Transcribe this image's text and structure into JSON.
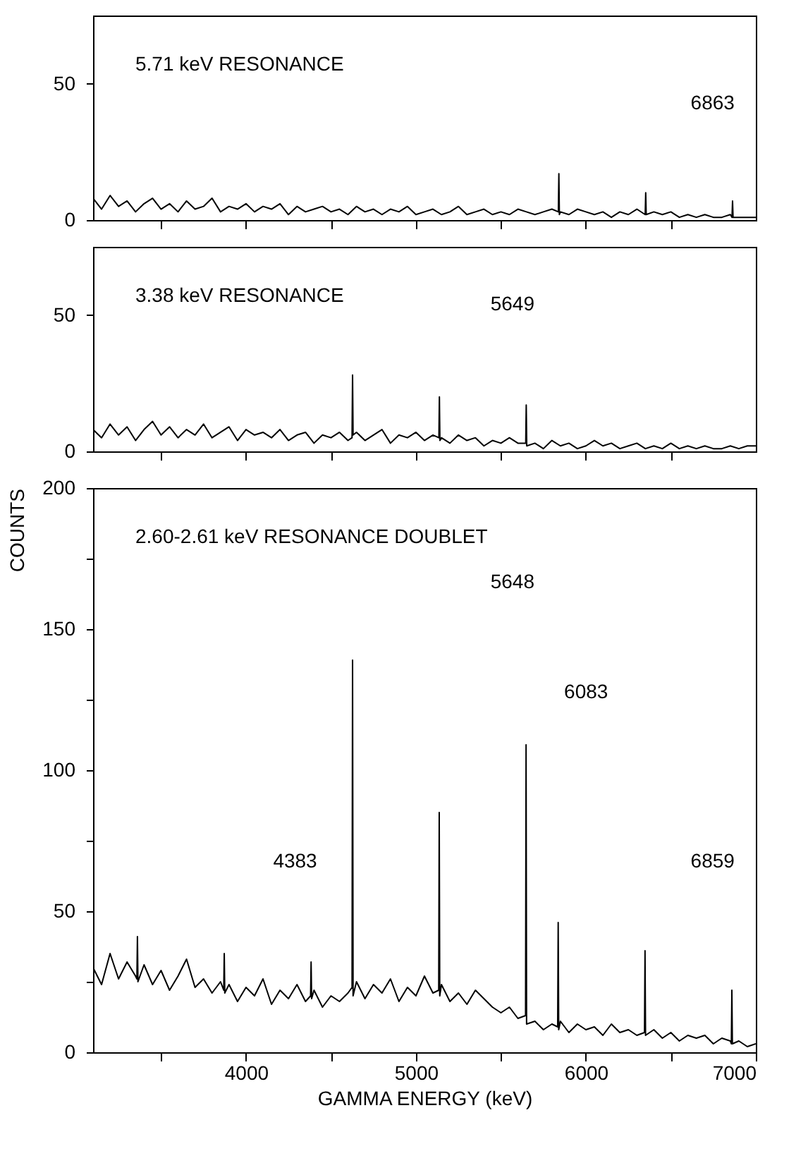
{
  "chart_data": [
    {
      "type": "line",
      "title": "5.71 keV RESONANCE",
      "xlim": [
        3100,
        7000
      ],
      "xticks": [
        {
          "value": 3500,
          "label": null
        },
        {
          "value": 4000,
          "label": null
        },
        {
          "value": 4500,
          "label": null
        },
        {
          "value": 5000,
          "label": null
        },
        {
          "value": 5500,
          "label": null
        },
        {
          "value": 6000,
          "label": null
        },
        {
          "value": 6500,
          "label": null
        }
      ],
      "ylim": [
        0,
        75
      ],
      "yticks": [
        0,
        50
      ],
      "tick_labels": "y",
      "grid": false,
      "annotations": [
        "6863"
      ],
      "series": [
        {
          "color": "#000000",
          "x": [
            3100,
            3150,
            3200,
            3250,
            3300,
            3350,
            3400,
            3450,
            3500,
            3550,
            3600,
            3650,
            3700,
            3750,
            3800,
            3850,
            3900,
            3950,
            4000,
            4050,
            4100,
            4150,
            4200,
            4250,
            4300,
            4350,
            4400,
            4450,
            4500,
            4550,
            4600,
            4650,
            4700,
            4750,
            4800,
            4850,
            4900,
            4950,
            5000,
            5050,
            5100,
            5150,
            5200,
            5250,
            5300,
            5350,
            5400,
            5450,
            5500,
            5550,
            5600,
            5650,
            5700,
            5750,
            5800,
            5838,
            5841,
            5844,
            5850,
            5900,
            5950,
            6000,
            6050,
            6100,
            6150,
            6200,
            6250,
            6300,
            6349,
            6352,
            6355,
            6400,
            6450,
            6500,
            6550,
            6600,
            6650,
            6700,
            6750,
            6800,
            6850,
            6860,
            6863,
            6866,
            6900,
            6950,
            7000
          ],
          "values": [
            8,
            4,
            9,
            5,
            7,
            3,
            6,
            8,
            4,
            6,
            3,
            7,
            4,
            5,
            8,
            3,
            5,
            4,
            6,
            3,
            5,
            4,
            6,
            2,
            5,
            3,
            4,
            5,
            3,
            4,
            2,
            5,
            3,
            4,
            2,
            4,
            3,
            5,
            2,
            3,
            4,
            2,
            3,
            5,
            2,
            3,
            4,
            2,
            3,
            2,
            4,
            3,
            2,
            3,
            4,
            3,
            17,
            2,
            3,
            2,
            4,
            3,
            2,
            3,
            1,
            3,
            2,
            4,
            2,
            10,
            2,
            3,
            2,
            3,
            1,
            2,
            1,
            2,
            1,
            1,
            2,
            1,
            7,
            1,
            1,
            1,
            1
          ]
        }
      ]
    },
    {
      "type": "line",
      "title": "3.38 keV RESONANCE",
      "xlim": [
        3100,
        7000
      ],
      "xticks": [
        {
          "value": 3500,
          "label": null
        },
        {
          "value": 4000,
          "label": null
        },
        {
          "value": 4500,
          "label": null
        },
        {
          "value": 5000,
          "label": null
        },
        {
          "value": 5500,
          "label": null
        },
        {
          "value": 6000,
          "label": null
        },
        {
          "value": 6500,
          "label": null
        }
      ],
      "ylim": [
        0,
        75
      ],
      "yticks": [
        0,
        50
      ],
      "tick_labels": "y",
      "grid": false,
      "annotations": [
        "5649"
      ],
      "series": [
        {
          "color": "#000000",
          "x": [
            3100,
            3150,
            3200,
            3250,
            3300,
            3350,
            3400,
            3450,
            3500,
            3550,
            3600,
            3650,
            3700,
            3750,
            3800,
            3850,
            3900,
            3950,
            4000,
            4050,
            4100,
            4150,
            4200,
            4250,
            4300,
            4350,
            4400,
            4450,
            4500,
            4550,
            4600,
            4624,
            4627,
            4630,
            4650,
            4700,
            4750,
            4800,
            4850,
            4900,
            4950,
            5000,
            5050,
            5100,
            5135,
            5138,
            5141,
            5150,
            5200,
            5250,
            5300,
            5350,
            5400,
            5450,
            5500,
            5550,
            5600,
            5646,
            5649,
            5652,
            5700,
            5750,
            5800,
            5850,
            5900,
            5950,
            6000,
            6050,
            6100,
            6150,
            6200,
            6250,
            6300,
            6350,
            6400,
            6450,
            6500,
            6550,
            6600,
            6650,
            6700,
            6750,
            6800,
            6850,
            6900,
            6950,
            7000
          ],
          "values": [
            8,
            5,
            10,
            6,
            9,
            4,
            8,
            11,
            6,
            9,
            5,
            8,
            6,
            10,
            5,
            7,
            9,
            4,
            8,
            6,
            7,
            5,
            8,
            4,
            6,
            7,
            3,
            6,
            5,
            7,
            4,
            5,
            28,
            6,
            7,
            4,
            6,
            8,
            3,
            6,
            5,
            7,
            4,
            6,
            5,
            20,
            4,
            5,
            3,
            6,
            4,
            5,
            2,
            4,
            3,
            5,
            3,
            3,
            17,
            2,
            3,
            1,
            4,
            2,
            3,
            1,
            2,
            4,
            2,
            3,
            1,
            2,
            3,
            1,
            2,
            1,
            3,
            1,
            2,
            1,
            2,
            1,
            1,
            2,
            1,
            2,
            2
          ]
        }
      ]
    },
    {
      "type": "line",
      "title": "2.60-2.61 keV RESONANCE DOUBLET",
      "xlabel": "GAMMA ENERGY (keV)",
      "ylabel": "COUNTS",
      "xlim": [
        3100,
        7000
      ],
      "xticks": [
        {
          "value": 3500,
          "label": null
        },
        4000,
        {
          "value": 4500,
          "label": null
        },
        5000,
        {
          "value": 5500,
          "label": null
        },
        6000,
        {
          "value": 6500,
          "label": null
        },
        7000
      ],
      "ylim": [
        0,
        200
      ],
      "yticks": [
        0,
        {
          "value": 25,
          "label": null
        },
        50,
        {
          "value": 75,
          "label": null
        },
        100,
        {
          "value": 125,
          "label": null
        },
        150,
        {
          "value": 175,
          "label": null
        },
        200
      ],
      "grid": false,
      "annotations": [
        "5648",
        "6083",
        "4383",
        "6859"
      ],
      "series": [
        {
          "color": "#000000",
          "x": [
            3100,
            3150,
            3200,
            3250,
            3300,
            3350,
            3358,
            3361,
            3364,
            3400,
            3450,
            3500,
            3550,
            3600,
            3650,
            3700,
            3750,
            3800,
            3850,
            3869,
            3872,
            3875,
            3900,
            3950,
            4000,
            4050,
            4100,
            4150,
            4200,
            4250,
            4300,
            4350,
            4380,
            4383,
            4386,
            4400,
            4450,
            4500,
            4550,
            4600,
            4624,
            4627,
            4630,
            4650,
            4700,
            4750,
            4800,
            4850,
            4900,
            4950,
            5000,
            5050,
            5100,
            5134,
            5137,
            5140,
            5150,
            5200,
            5250,
            5300,
            5350,
            5400,
            5450,
            5500,
            5550,
            5600,
            5645,
            5648,
            5651,
            5700,
            5750,
            5800,
            5834,
            5837,
            5840,
            5850,
            5900,
            5950,
            6000,
            6050,
            6100,
            6150,
            6200,
            6250,
            6300,
            6345,
            6348,
            6351,
            6400,
            6450,
            6500,
            6550,
            6600,
            6650,
            6700,
            6750,
            6800,
            6850,
            6856,
            6859,
            6862,
            6900,
            6950,
            7000
          ],
          "values": [
            30,
            24,
            35,
            26,
            32,
            27,
            26,
            41,
            25,
            31,
            24,
            29,
            22,
            27,
            33,
            23,
            26,
            21,
            25,
            22,
            35,
            21,
            24,
            18,
            23,
            20,
            26,
            17,
            22,
            19,
            24,
            18,
            20,
            32,
            19,
            22,
            16,
            20,
            18,
            21,
            23,
            139,
            20,
            25,
            19,
            24,
            21,
            26,
            18,
            23,
            20,
            27,
            21,
            22,
            85,
            20,
            24,
            18,
            21,
            17,
            22,
            19,
            16,
            14,
            16,
            12,
            13,
            109,
            10,
            11,
            8,
            10,
            9,
            46,
            8,
            11,
            7,
            10,
            8,
            9,
            6,
            10,
            7,
            8,
            6,
            7,
            36,
            6,
            8,
            5,
            7,
            4,
            6,
            5,
            6,
            3,
            5,
            4,
            3,
            22,
            3,
            4,
            2,
            3
          ]
        }
      ]
    }
  ]
}
